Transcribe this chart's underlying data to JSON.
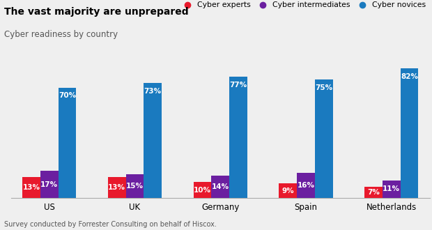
{
  "title": "The vast majority are unprepared",
  "subtitle": "Cyber readiness by country",
  "footer": "Survey conducted by Forrester Consulting on behalf of Hiscox.",
  "countries": [
    "US",
    "UK",
    "Germany",
    "Spain",
    "Netherlands"
  ],
  "experts": [
    13,
    13,
    10,
    9,
    7
  ],
  "intermediates": [
    17,
    15,
    14,
    16,
    11
  ],
  "novices": [
    70,
    73,
    77,
    75,
    82
  ],
  "expert_color": "#e8192c",
  "intermediate_color": "#6b1fa0",
  "novice_color": "#1a7abf",
  "background_color": "#efefef",
  "bar_width": 0.21,
  "legend_labels": [
    "Cyber experts",
    "Cyber intermediates",
    "Cyber novices"
  ],
  "ylim": [
    0,
    92
  ],
  "title_fontsize": 10,
  "subtitle_fontsize": 8.5,
  "footer_fontsize": 7,
  "label_fontsize": 7.5
}
